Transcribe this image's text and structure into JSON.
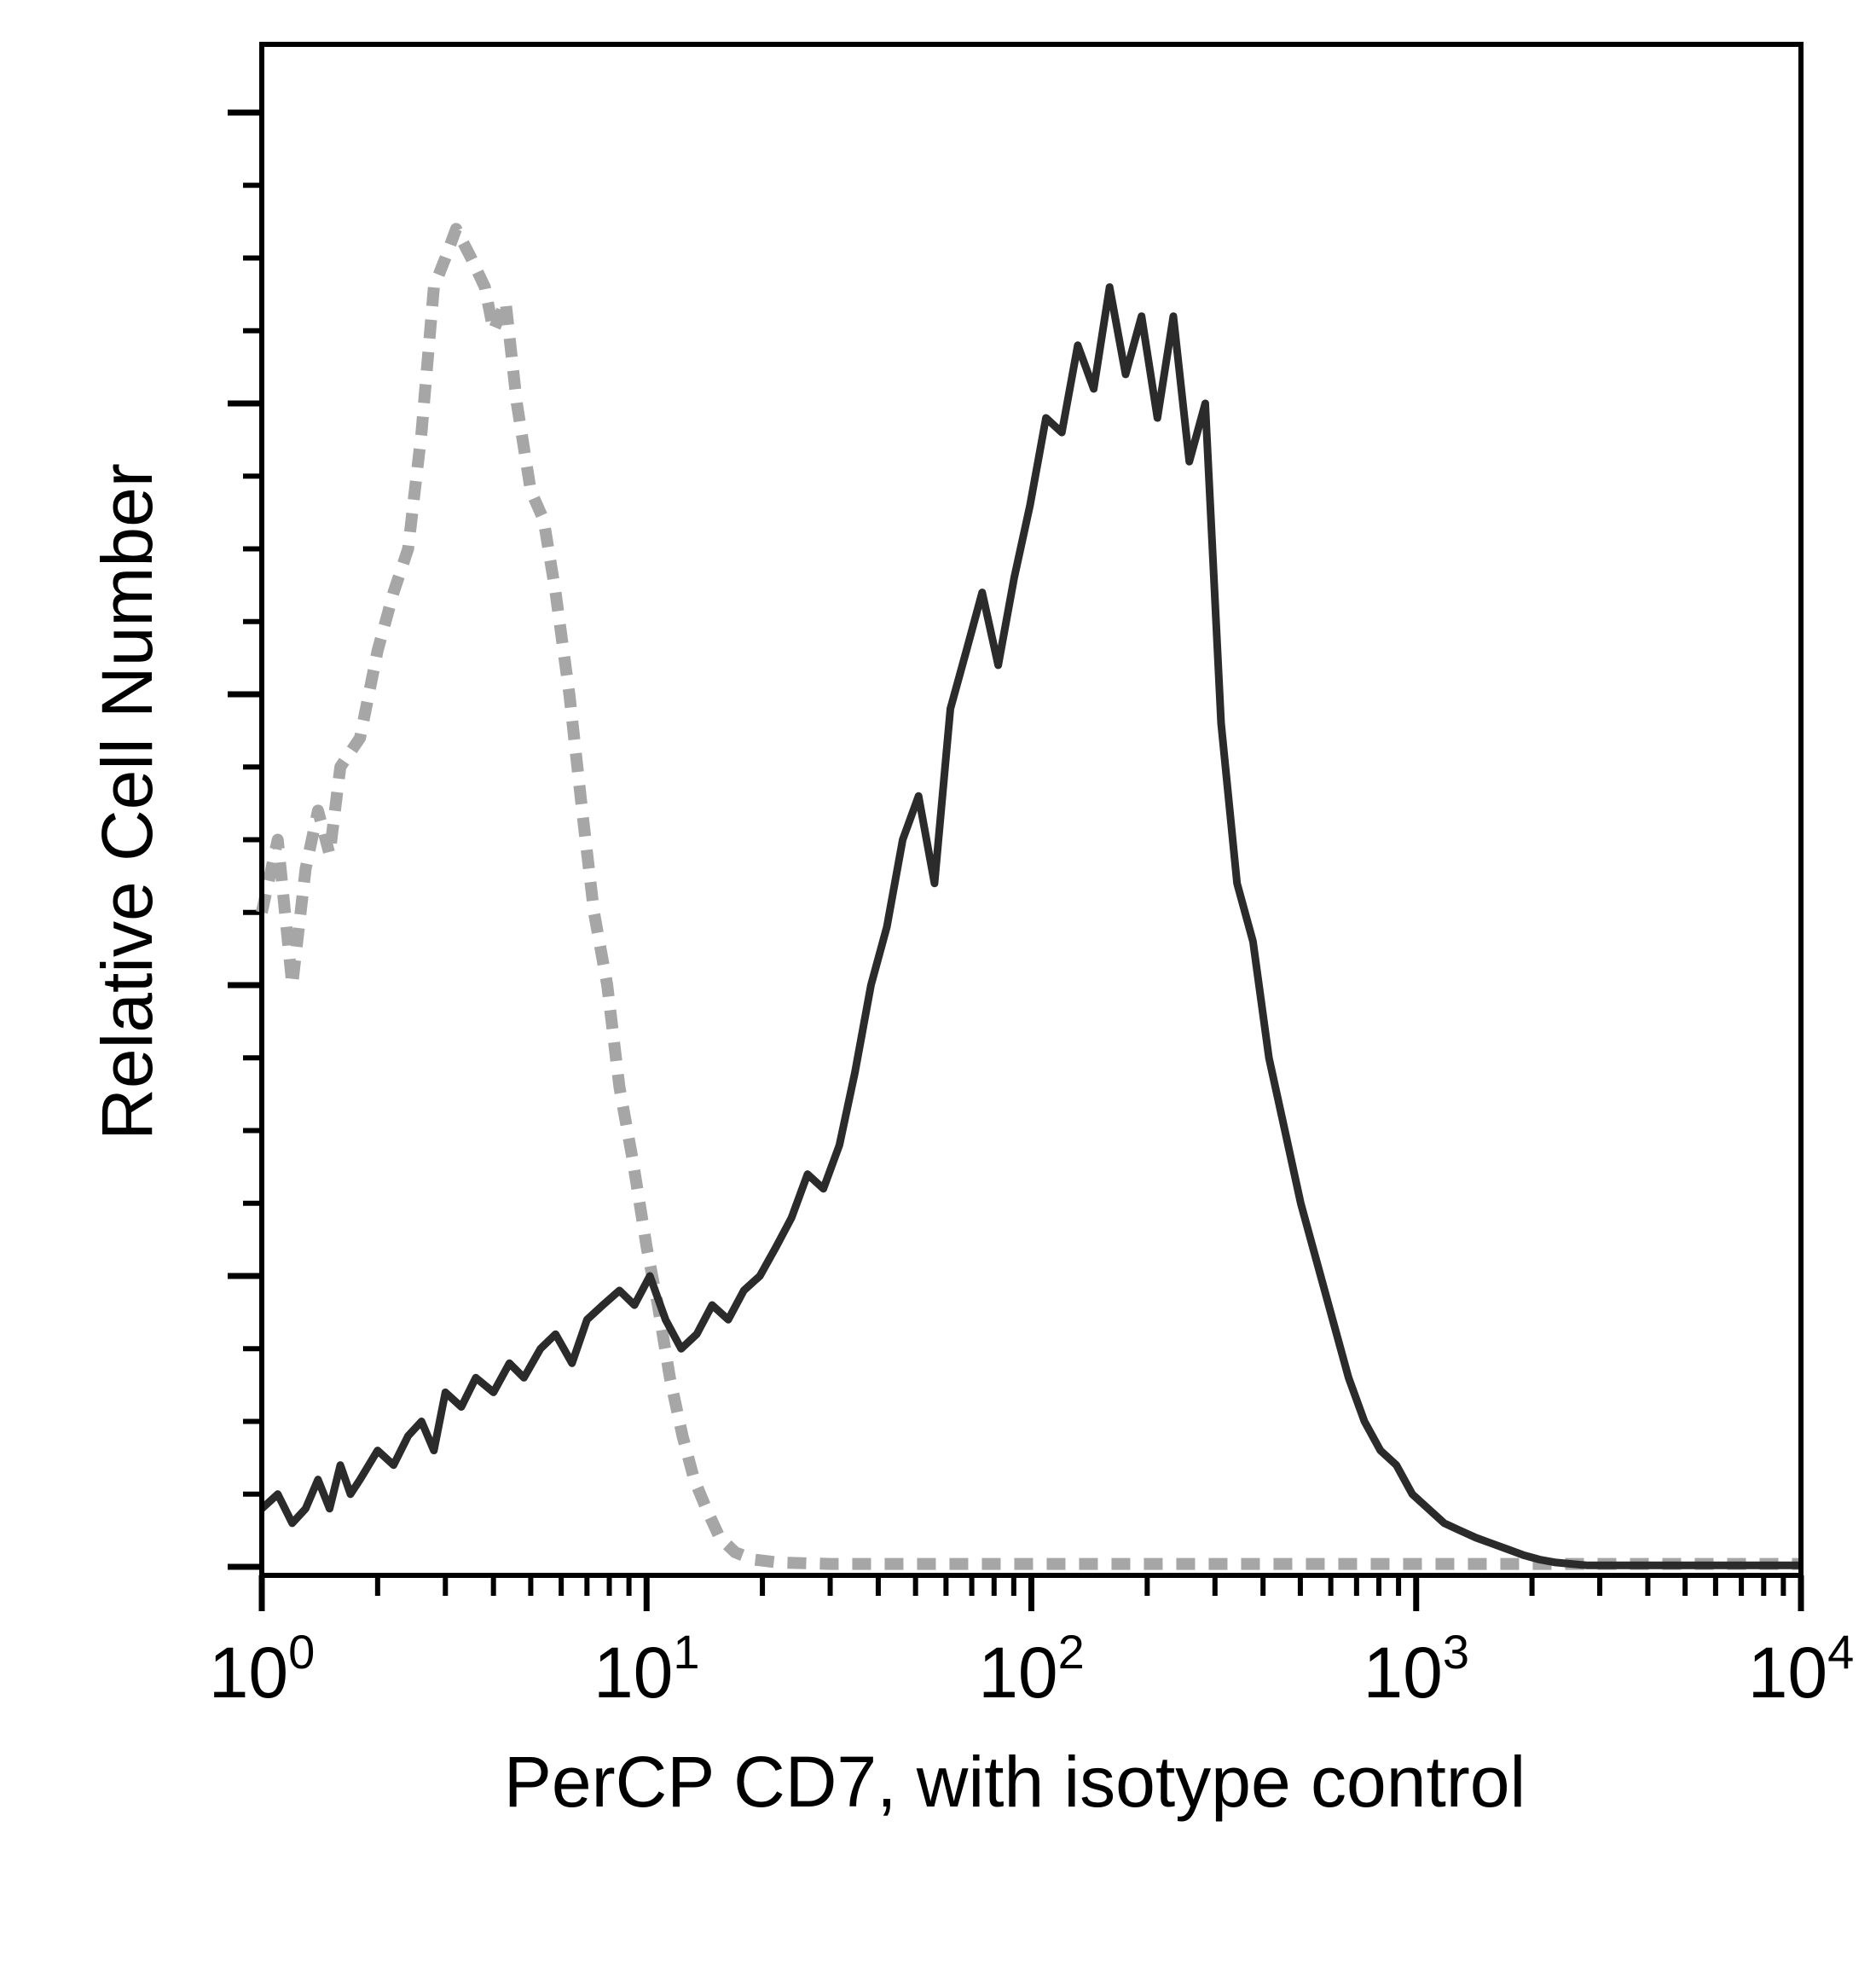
{
  "chart_data": {
    "type": "area",
    "title": "",
    "xlabel": "PerCP CD7, with isotype control",
    "ylabel": "Relative Cell Number",
    "x_scale": "log",
    "xlim": [
      1,
      10000
    ],
    "ylim": [
      0,
      100
    ],
    "x_tick_labels": [
      {
        "value": 1,
        "base": "10",
        "exp": "0"
      },
      {
        "value": 10,
        "base": "10",
        "exp": "1"
      },
      {
        "value": 100,
        "base": "10",
        "exp": "2"
      },
      {
        "value": 1000,
        "base": "10",
        "exp": "3"
      },
      {
        "value": 10000,
        "base": "10",
        "exp": "4"
      }
    ],
    "y_major_ticks": [
      0,
      20,
      40,
      60,
      80,
      100
    ],
    "y_minor_ticks": [
      5,
      10,
      15,
      25,
      30,
      35,
      45,
      50,
      55,
      65,
      70,
      75,
      85,
      90,
      95
    ],
    "grid": false,
    "legend": "none",
    "series": [
      {
        "role": "isotype control",
        "color": "#a6a6a6",
        "style": "dashed",
        "x": [
          1.0,
          1.1,
          1.2,
          1.3,
          1.4,
          1.5,
          1.6,
          1.8,
          2.0,
          2.2,
          2.4,
          2.6,
          2.8,
          3.0,
          3.2,
          3.5,
          3.8,
          4.0,
          4.3,
          4.6,
          5.0,
          5.4,
          5.8,
          6.3,
          6.8,
          7.3,
          7.9,
          8.5,
          9.2,
          10.0,
          10.7,
          11.5,
          12.4,
          13.3,
          14.3,
          15.5,
          17.0,
          19.0,
          22.0,
          30.0,
          50.0,
          100.0,
          200.0,
          500.0,
          1000.0,
          2000.0,
          10000.0
        ],
        "y": [
          45,
          50,
          40,
          48,
          52,
          49,
          55,
          57,
          63,
          67,
          70,
          78,
          88,
          90,
          92,
          90,
          88,
          85,
          87,
          80,
          74,
          72,
          67,
          60,
          52,
          45,
          40,
          33,
          28,
          22,
          18,
          13,
          9,
          6,
          4,
          2,
          1,
          0.5,
          0.3,
          0.2,
          0.2,
          0.2,
          0.2,
          0.2,
          0.2,
          0.2,
          0.2
        ]
      },
      {
        "role": "PerCP CD7",
        "color": "#2b2b2b",
        "style": "solid",
        "x": [
          1.0,
          1.1,
          1.2,
          1.3,
          1.4,
          1.5,
          1.6,
          1.7,
          1.8,
          2.0,
          2.2,
          2.4,
          2.6,
          2.8,
          3.0,
          3.3,
          3.6,
          4.0,
          4.4,
          4.8,
          5.3,
          5.8,
          6.4,
          7.0,
          7.7,
          8.5,
          9.3,
          10.2,
          11.2,
          12.3,
          13.5,
          14.8,
          16.3,
          17.9,
          19.7,
          21.7,
          23.8,
          26.2,
          28.8,
          31.7,
          34.8,
          38.3,
          42.1,
          46.3,
          50.9,
          56.0,
          61.6,
          67.8,
          74.5,
          82.0,
          90.2,
          99.2,
          109.1,
          120.0,
          132.0,
          145.2,
          159.7,
          175.7,
          193.3,
          212.6,
          233.9,
          257.3,
          283.0,
          311.3,
          342.4,
          376.7,
          414.3,
          455.8,
          501.3,
          551.5,
          606.6,
          667.3,
          734.0,
          807.4,
          888.2,
          977.0,
          1074.7,
          1182.2,
          1300.4,
          1430.4,
          1573.5,
          1730.8,
          1903.9,
          2094.3,
          2303.7,
          2534.1,
          2787.5,
          3066.3,
          3372.9,
          4000.0,
          5000.0,
          7000.0,
          10000.0
        ],
        "y": [
          4,
          5,
          3,
          4,
          6,
          4,
          7,
          5,
          6,
          8,
          7,
          9,
          10,
          8,
          12,
          11,
          13,
          12,
          14,
          13,
          15,
          16,
          14,
          17,
          18,
          19,
          18,
          20,
          17,
          15,
          16,
          18,
          17,
          19,
          20,
          22,
          24,
          27,
          26,
          29,
          34,
          40,
          44,
          50,
          53,
          47,
          59,
          63,
          67,
          62,
          68,
          73,
          79,
          78,
          84,
          81,
          88,
          82,
          86,
          79,
          86,
          76,
          80,
          58,
          47,
          43,
          35,
          30,
          25,
          21,
          17,
          13,
          10,
          8,
          7,
          5,
          4,
          3,
          2.5,
          2,
          1.6,
          1.2,
          0.8,
          0.5,
          0.3,
          0.2,
          0.1,
          0.1,
          0.1,
          0.1,
          0.1,
          0.1,
          0.1
        ]
      }
    ]
  }
}
